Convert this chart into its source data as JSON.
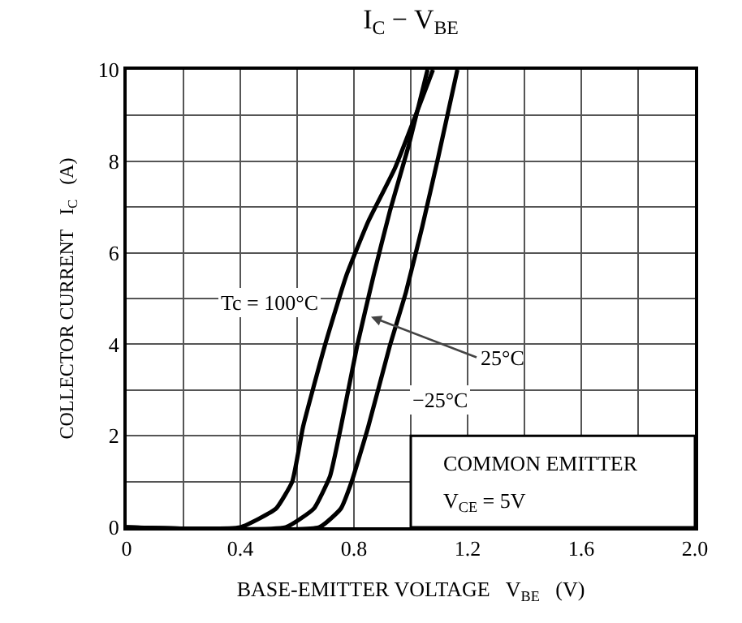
{
  "chart_data": {
    "type": "line",
    "title": "I$_{C}$ − V$_{BE}$",
    "xlabel": "BASE-EMITTER VOLTAGE   V$_{BE}$   (V)",
    "ylabel": "COLLECTOR CURRENT   I$_{C}$   (A)",
    "xlim": [
      0,
      2.0
    ],
    "ylim": [
      0,
      10
    ],
    "xticks": [
      {
        "value": 0,
        "label": "0"
      },
      {
        "value": 0.2,
        "label": null
      },
      0.4,
      {
        "value": 0.6,
        "label": null
      },
      0.8,
      {
        "value": 1.0,
        "label": null
      },
      1.2,
      {
        "value": 1.4,
        "label": null
      },
      1.6,
      {
        "value": 1.8,
        "label": null
      },
      {
        "value": 2.0,
        "label": "2.0"
      }
    ],
    "yticks": [
      0,
      {
        "value": 1,
        "label": null
      },
      2,
      {
        "value": 3,
        "label": null
      },
      4,
      {
        "value": 5,
        "label": null
      },
      6,
      {
        "value": 7,
        "label": null
      },
      8,
      {
        "value": 9,
        "label": null
      },
      10
    ],
    "grid": true,
    "marker": "none",
    "line_style": "solid",
    "series": [
      {
        "color": "#000000",
        "x": [
          0,
          0.4,
          0.526,
          0.583,
          0.621,
          0.697,
          0.773,
          0.85,
          0.945,
          1.078
        ],
        "values": [
          0,
          0,
          0.41,
          1.0,
          2.2,
          3.96,
          5.5,
          6.68,
          7.86,
          10
        ]
      },
      {
        "color": "#000000",
        "x": [
          0,
          0.56,
          0.659,
          0.716,
          0.754,
          0.811,
          0.869,
          0.926,
          0.992,
          1.059
        ],
        "values": [
          0,
          0,
          0.41,
          1.12,
          2.19,
          3.96,
          5.5,
          6.9,
          8.33,
          10
        ]
      },
      {
        "color": "#000000",
        "x": [
          0,
          0.678,
          0.754,
          0.792,
          0.85,
          0.926,
          0.983,
          1.04,
          1.097,
          1.164
        ],
        "values": [
          0,
          0,
          0.41,
          1.0,
          2.19,
          3.96,
          5.14,
          6.56,
          8.1,
          10
        ]
      }
    ],
    "annotations": [
      "Tc = 100°C",
      {
        "text": "25°C",
        "x": 0.86,
        "y": 4.6
      },
      "−25°C",
      "COMMON EMITTER",
      "V$_{CE}$ = 5V"
    ]
  }
}
